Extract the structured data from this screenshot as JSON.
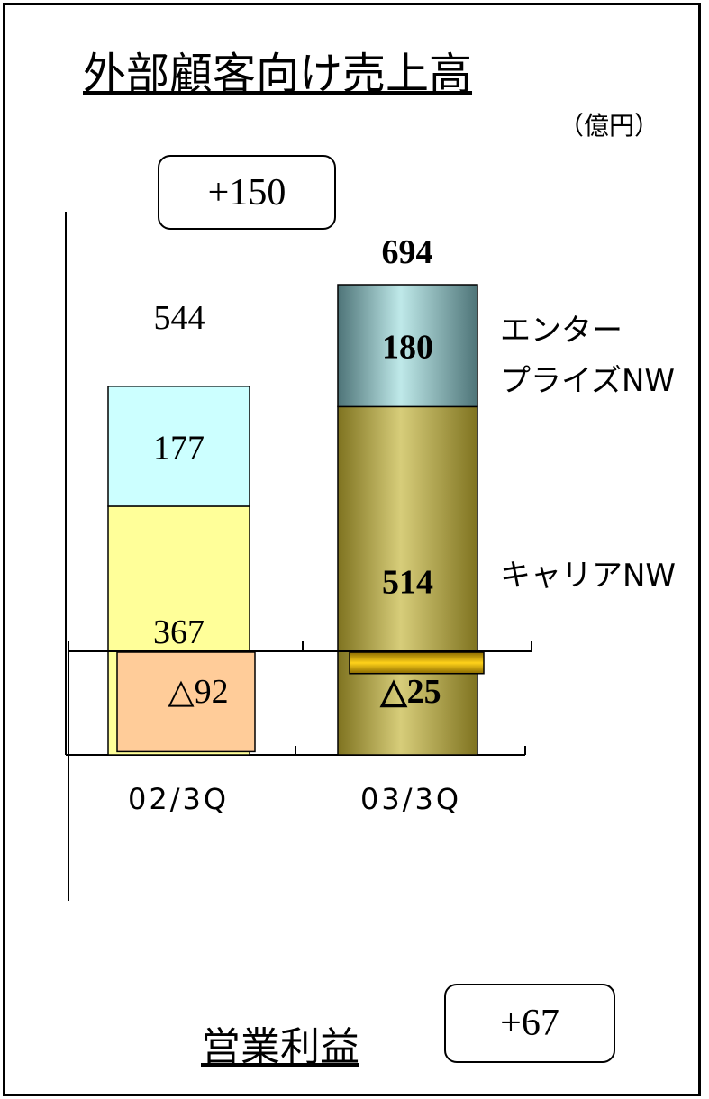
{
  "sales_title": "外部顧客向け売上高",
  "unit": "（億円）",
  "profit_title": "営業利益",
  "sales_change": "+150",
  "profit_change": "+67",
  "chart_data": [
    {
      "type": "bar",
      "stacked": true,
      "title": "外部顧客向け売上高",
      "unit": "（億円）",
      "categories": [
        "02/3Q",
        "03/3Q"
      ],
      "series": [
        {
          "name": "キャリアNW",
          "values": [
            367,
            514
          ]
        },
        {
          "name": "エンタープライズNW",
          "values": [
            177,
            180
          ]
        }
      ],
      "totals": [
        544,
        694
      ],
      "total_labels": [
        "544",
        "694"
      ],
      "segment_labels": [
        [
          "367",
          "177"
        ],
        [
          "514",
          "180"
        ]
      ],
      "series_labels": [
        "キャリアNW",
        "エンター\nプライズNW"
      ],
      "annotation": "+150",
      "ylim": [
        0,
        800
      ],
      "grid": false,
      "legend": "right",
      "colors": {
        "carrier_02": "#ffff99",
        "enterprise_02": "#ccffff",
        "carrier_03": "#b5a94a",
        "enterprise_03": "#7ba0a4"
      }
    },
    {
      "type": "bar",
      "title": "営業利益",
      "categories": [
        "02/3Q",
        "03/3Q"
      ],
      "values": [
        -92,
        -25
      ],
      "labels": [
        "△92",
        "△25"
      ],
      "annotation": "+67",
      "ylim": [
        -100,
        0
      ],
      "grid": false,
      "colors": {
        "bar_02": "#ffcc99",
        "bar_03": "#e6b800"
      }
    }
  ]
}
